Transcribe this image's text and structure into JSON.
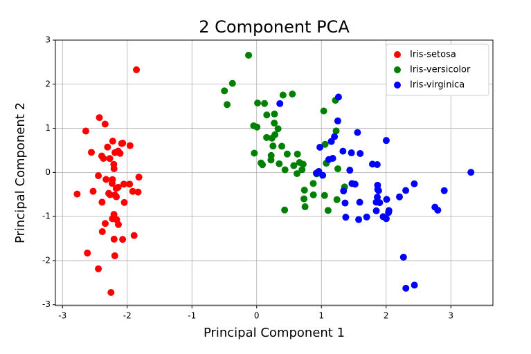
{
  "chart_data": {
    "type": "scatter",
    "title": "2 Component PCA",
    "x_label": "Principal Component 1",
    "y_label": "Principal Component 2",
    "xlim": [
      -3.11,
      3.65
    ],
    "ylim": [
      -3.02,
      3.0
    ],
    "xticks": [
      -3,
      -2,
      -1,
      0,
      1,
      2,
      3
    ],
    "yticks": [
      -3,
      -2,
      -1,
      0,
      1,
      2,
      3
    ],
    "grid": true,
    "legend": "upper right",
    "series": [
      {
        "name": "Iris-setosa",
        "color": "#ff0000",
        "x": [
          -2.265,
          -2.086,
          -2.368,
          -2.304,
          -2.389,
          -2.071,
          -2.446,
          -2.234,
          -2.342,
          -2.189,
          -2.163,
          -2.327,
          -2.224,
          -2.64,
          -2.192,
          -2.251,
          -2.203,
          -2.19,
          -1.894,
          -2.34,
          -1.915,
          -2.205,
          -2.774,
          -1.82,
          -2.228,
          -1.957,
          -2.052,
          -2.168,
          -2.14,
          -2.269,
          -2.14,
          -1.832,
          -2.615,
          -2.446,
          -2.11,
          -2.208,
          -2.045,
          -2.527,
          -2.43,
          -2.17,
          -2.286,
          -1.858,
          -2.554,
          -1.964,
          -2.137,
          -2.07,
          -2.385,
          -2.394,
          -2.229,
          -2.204
        ],
        "values": [
          -0.506,
          0.655,
          0.318,
          0.575,
          -0.675,
          -1.519,
          -0.075,
          -0.248,
          1.095,
          0.449,
          -1.071,
          -0.159,
          0.709,
          0.938,
          -1.89,
          -2.722,
          -1.514,
          -0.514,
          -1.431,
          -1.158,
          -0.43,
          -0.952,
          -0.49,
          -0.107,
          -0.162,
          0.608,
          -0.266,
          -0.552,
          -0.337,
          0.315,
          0.483,
          -0.445,
          -1.828,
          -2.185,
          0.432,
          0.183,
          -0.682,
          -0.428,
          1.243,
          -0.363,
          -0.475,
          2.327,
          0.455,
          -0.266,
          -1.182,
          0.664,
          -1.342,
          0.372,
          -1.05,
          0.085
        ]
      },
      {
        "name": "Iris-versicolor",
        "color": "#008000",
        "x": [
          1.103,
          0.731,
          1.24,
          0.407,
          1.075,
          0.388,
          0.747,
          -0.498,
          0.927,
          0.005,
          -0.125,
          0.438,
          0.551,
          0.718,
          -0.037,
          0.876,
          0.348,
          0.154,
          1.216,
          0.156,
          0.738,
          0.472,
          1.228,
          0.63,
          0.701,
          0.874,
          1.254,
          1.358,
          0.662,
          -0.047,
          0.121,
          0.014,
          0.236,
          1.057,
          0.221,
          0.432,
          1.049,
          1.036,
          0.067,
          0.275,
          0.272,
          0.623,
          0.33,
          -0.374,
          0.282,
          0.089,
          0.224,
          0.573,
          -0.457,
          0.252
        ],
        "values": [
          -0.863,
          -0.599,
          -0.617,
          1.754,
          0.208,
          0.593,
          -0.779,
          1.849,
          -0.033,
          1.029,
          2.658,
          0.059,
          1.777,
          0.186,
          0.437,
          -0.509,
          0.196,
          0.792,
          1.634,
          1.303,
          -0.402,
          0.417,
          0.941,
          0.416,
          0.064,
          -0.251,
          0.083,
          -0.329,
          0.225,
          1.057,
          1.563,
          1.573,
          0.776,
          0.637,
          0.281,
          -0.853,
          -0.522,
          1.393,
          0.213,
          1.324,
          1.119,
          -0.027,
          0.989,
          2.018,
          0.855,
          0.175,
          0.383,
          0.154,
          1.539,
          0.599
        ]
      },
      {
        "name": "Iris-virginica",
        "color": "#0000ff",
        "x": [
          1.848,
          1.153,
          2.206,
          1.439,
          1.868,
          2.754,
          0.358,
          2.303,
          2.002,
          2.268,
          1.366,
          1.599,
          1.884,
          1.253,
          1.464,
          1.592,
          1.472,
          2.437,
          3.31,
          1.264,
          2.037,
          0.977,
          2.898,
          1.333,
          1.7,
          1.954,
          1.175,
          1.02,
          1.789,
          1.864,
          2.435,
          2.305,
          1.862,
          1.114,
          1.202,
          2.798,
          1.576,
          1.342,
          0.922,
          1.847,
          2.008,
          1.9,
          1.153,
          2.043,
          2.002,
          1.87,
          1.558,
          1.52,
          1.376,
          0.959
        ],
        "values": [
          -0.871,
          0.702,
          -0.554,
          0.05,
          -0.291,
          -0.788,
          1.56,
          -0.41,
          0.724,
          -1.922,
          -0.693,
          0.428,
          -0.414,
          1.167,
          0.444,
          -0.677,
          -0.253,
          -2.556,
          0.002,
          1.708,
          -0.908,
          0.571,
          -0.413,
          0.482,
          -1.012,
          -1.004,
          0.319,
          -0.066,
          0.188,
          -0.562,
          -0.259,
          -2.626,
          0.178,
          0.292,
          0.811,
          -0.856,
          -1.069,
          -0.421,
          -0.017,
          -0.675,
          -0.612,
          -0.686,
          0.702,
          -0.865,
          -1.049,
          -0.387,
          0.905,
          -0.267,
          -1.016,
          0.022
        ]
      }
    ]
  }
}
